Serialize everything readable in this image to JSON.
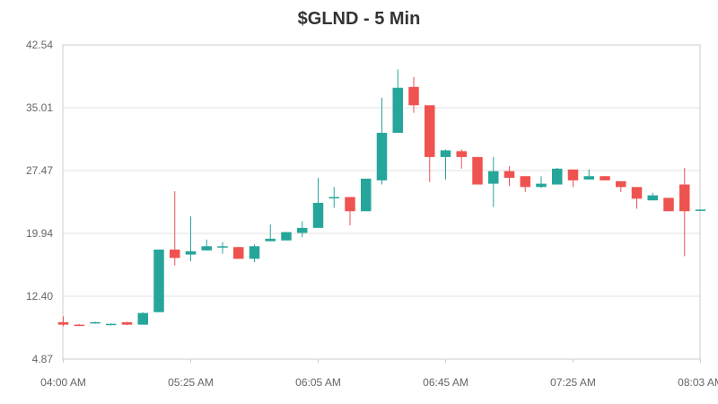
{
  "chart_data": {
    "type": "candlestick",
    "title": "$GLND - 5 Min",
    "xlabel": "",
    "ylabel": "",
    "ylim": [
      4.87,
      42.54
    ],
    "y_ticks": [
      "4.87",
      "12.40",
      "19.94",
      "27.47",
      "35.01",
      "42.54"
    ],
    "x_ticks": [
      {
        "label": "04:00 AM",
        "index": 0
      },
      {
        "label": "05:25 AM",
        "index": 8
      },
      {
        "label": "06:05 AM",
        "index": 16
      },
      {
        "label": "06:45 AM",
        "index": 24
      },
      {
        "label": "07:25 AM",
        "index": 32
      },
      {
        "label": "08:03 AM",
        "index": 40
      }
    ],
    "grid": true,
    "up_color": "#26a69a",
    "down_color": "#ef5350",
    "candles": [
      {
        "o": 9.3,
        "h": 10.0,
        "l": 8.8,
        "c": 9.0
      },
      {
        "o": 9.0,
        "h": 9.1,
        "l": 8.9,
        "c": 8.95
      },
      {
        "o": 9.2,
        "h": 9.35,
        "l": 9.1,
        "c": 9.3
      },
      {
        "o": 9.0,
        "h": 9.15,
        "l": 8.95,
        "c": 9.1
      },
      {
        "o": 9.3,
        "h": 9.35,
        "l": 8.95,
        "c": 9.0
      },
      {
        "o": 9.0,
        "h": 10.5,
        "l": 9.0,
        "c": 10.4
      },
      {
        "o": 10.5,
        "h": 18.0,
        "l": 10.5,
        "c": 18.0
      },
      {
        "o": 18.0,
        "h": 25.0,
        "l": 16.1,
        "c": 17.0
      },
      {
        "o": 17.4,
        "h": 22.0,
        "l": 16.6,
        "c": 17.8
      },
      {
        "o": 17.9,
        "h": 19.2,
        "l": 17.9,
        "c": 18.4
      },
      {
        "o": 18.3,
        "h": 18.9,
        "l": 17.5,
        "c": 18.4
      },
      {
        "o": 18.3,
        "h": 18.3,
        "l": 16.9,
        "c": 16.9
      },
      {
        "o": 16.9,
        "h": 18.6,
        "l": 16.5,
        "c": 18.4
      },
      {
        "o": 19.0,
        "h": 21.0,
        "l": 19.0,
        "c": 19.3
      },
      {
        "o": 19.1,
        "h": 20.1,
        "l": 19.1,
        "c": 20.1
      },
      {
        "o": 20.0,
        "h": 21.4,
        "l": 19.5,
        "c": 20.6
      },
      {
        "o": 20.6,
        "h": 26.6,
        "l": 20.6,
        "c": 23.6
      },
      {
        "o": 24.3,
        "h": 25.5,
        "l": 23.0,
        "c": 24.3
      },
      {
        "o": 24.3,
        "h": 24.3,
        "l": 20.9,
        "c": 22.6
      },
      {
        "o": 22.6,
        "h": 26.5,
        "l": 22.6,
        "c": 26.5
      },
      {
        "o": 26.3,
        "h": 36.2,
        "l": 25.8,
        "c": 32.0
      },
      {
        "o": 32.0,
        "h": 39.6,
        "l": 32.0,
        "c": 37.4
      },
      {
        "o": 37.5,
        "h": 38.7,
        "l": 34.4,
        "c": 35.3
      },
      {
        "o": 35.3,
        "h": 35.3,
        "l": 26.1,
        "c": 29.1
      },
      {
        "o": 29.1,
        "h": 30.0,
        "l": 26.4,
        "c": 29.9
      },
      {
        "o": 29.8,
        "h": 30.0,
        "l": 27.7,
        "c": 29.1
      },
      {
        "o": 29.1,
        "h": 29.1,
        "l": 25.8,
        "c": 25.8
      },
      {
        "o": 25.9,
        "h": 29.1,
        "l": 23.1,
        "c": 27.4
      },
      {
        "o": 27.4,
        "h": 28.0,
        "l": 25.6,
        "c": 26.6
      },
      {
        "o": 26.8,
        "h": 26.8,
        "l": 24.9,
        "c": 25.5
      },
      {
        "o": 25.5,
        "h": 26.8,
        "l": 25.4,
        "c": 25.9
      },
      {
        "o": 25.8,
        "h": 27.8,
        "l": 25.8,
        "c": 27.7
      },
      {
        "o": 27.6,
        "h": 27.6,
        "l": 25.5,
        "c": 26.3
      },
      {
        "o": 26.4,
        "h": 27.6,
        "l": 26.4,
        "c": 26.8
      },
      {
        "o": 26.8,
        "h": 26.8,
        "l": 26.3,
        "c": 26.3
      },
      {
        "o": 26.2,
        "h": 26.2,
        "l": 24.9,
        "c": 25.5
      },
      {
        "o": 25.5,
        "h": 25.5,
        "l": 22.9,
        "c": 24.1
      },
      {
        "o": 23.9,
        "h": 24.8,
        "l": 23.9,
        "c": 24.5
      },
      {
        "o": 24.2,
        "h": 24.2,
        "l": 22.6,
        "c": 22.6
      },
      {
        "o": 25.8,
        "h": 27.8,
        "l": 17.2,
        "c": 22.6
      },
      {
        "o": 22.7,
        "h": 22.8,
        "l": 22.7,
        "c": 22.8
      }
    ]
  }
}
